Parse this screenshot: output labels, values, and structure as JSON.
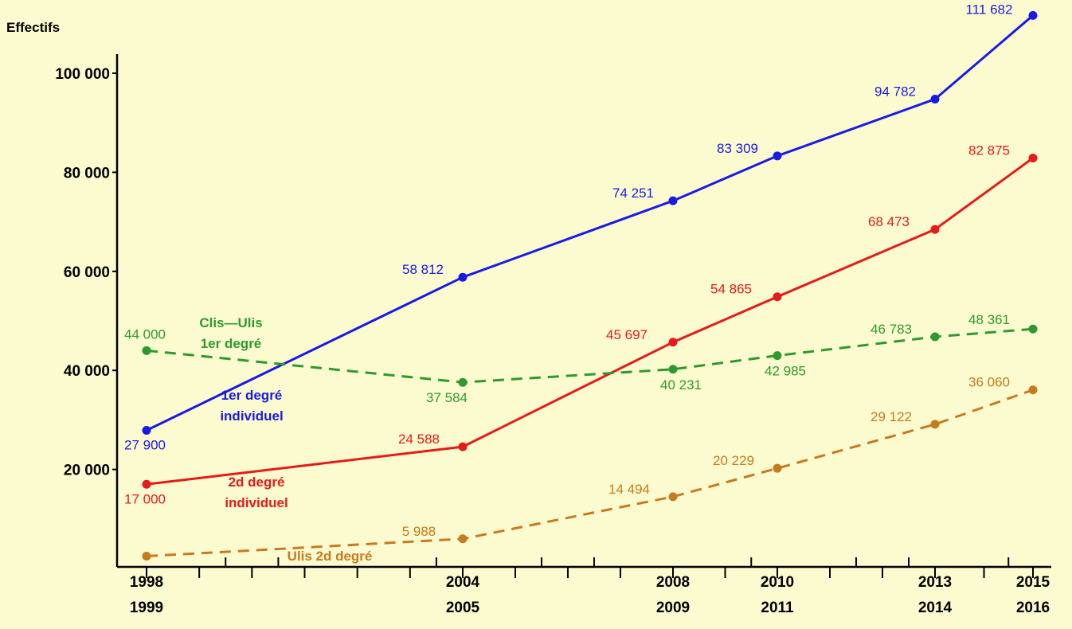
{
  "chart_data": {
    "type": "line",
    "ylabel": "Effectifs",
    "xlabel": "",
    "title": "",
    "ylim": [
      0,
      112000
    ],
    "y_ticks": [
      {
        "value": 20000,
        "label": "20 000"
      },
      {
        "value": 40000,
        "label": "40 000"
      },
      {
        "value": 60000,
        "label": "60 000"
      },
      {
        "value": 80000,
        "label": "80 000"
      },
      {
        "value": 100000,
        "label": "100 000"
      }
    ],
    "x_start_years": [
      1998,
      1999,
      2000,
      2001,
      2002,
      2003,
      2004,
      2005,
      2006,
      2007,
      2008,
      2009,
      2010,
      2011,
      2012,
      2013,
      2014,
      2015
    ],
    "x_ticks": [
      {
        "x": 1998,
        "top": "1998",
        "bottom": "1999"
      },
      {
        "x": 2004,
        "top": "2004",
        "bottom": "2005"
      },
      {
        "x": 2008,
        "top": "2008",
        "bottom": "2009"
      },
      {
        "x": 2010,
        "top": "2010",
        "bottom": "2011"
      },
      {
        "x": 2013,
        "top": "2013",
        "bottom": "2014"
      },
      {
        "x": 2015,
        "top": "2015",
        "bottom": "2016"
      }
    ],
    "series": [
      {
        "name": "1er degré individuel",
        "label_lines": [
          "1er degré",
          "individuel"
        ],
        "color": "#1a1ae6",
        "dashed": false,
        "points": [
          {
            "x": 1998,
            "y": 27900,
            "label": "27 900"
          },
          {
            "x": 2004,
            "y": 58812,
            "label": "58 812"
          },
          {
            "x": 2008,
            "y": 74251,
            "label": "74 251"
          },
          {
            "x": 2010,
            "y": 83309,
            "label": "83 309"
          },
          {
            "x": 2013,
            "y": 94782,
            "label": "94 782"
          },
          {
            "x": 2015,
            "y": 111682,
            "label": "111 682"
          }
        ]
      },
      {
        "name": "2d degré individuel",
        "label_lines": [
          "2d degré",
          "individuel"
        ],
        "color": "#e61a1a",
        "dashed": false,
        "points": [
          {
            "x": 1998,
            "y": 17000,
            "label": "17 000"
          },
          {
            "x": 2004,
            "y": 24588,
            "label": "24 588"
          },
          {
            "x": 2008,
            "y": 45697,
            "label": "45 697"
          },
          {
            "x": 2010,
            "y": 54865,
            "label": "54 865"
          },
          {
            "x": 2013,
            "y": 68473,
            "label": "68 473"
          },
          {
            "x": 2015,
            "y": 82875,
            "label": "82 875"
          }
        ]
      },
      {
        "name": "Clis—Ulis 1er degré",
        "label_lines": [
          "Clis—Ulis",
          "1er degré"
        ],
        "color": "#2e9a2e",
        "dashed": true,
        "points": [
          {
            "x": 1998,
            "y": 44000,
            "label": "44 000"
          },
          {
            "x": 2004,
            "y": 37584,
            "label": "37 584"
          },
          {
            "x": 2008,
            "y": 40231,
            "label": "40 231"
          },
          {
            "x": 2010,
            "y": 42985,
            "label": "42 985"
          },
          {
            "x": 2013,
            "y": 46783,
            "label": "46 783"
          },
          {
            "x": 2015,
            "y": 48361,
            "label": "48 361"
          }
        ]
      },
      {
        "name": "Ulis 2d degré",
        "label_lines": [
          "Ulis 2d degré"
        ],
        "color": "#c87a1e",
        "dashed": true,
        "points": [
          {
            "x": 1998,
            "y": 2500,
            "label": ""
          },
          {
            "x": 2004,
            "y": 5988,
            "label": "5 988"
          },
          {
            "x": 2008,
            "y": 14494,
            "label": "14 494"
          },
          {
            "x": 2010,
            "y": 20229,
            "label": "20 229"
          },
          {
            "x": 2013,
            "y": 29122,
            "label": "29 122"
          },
          {
            "x": 2015,
            "y": 36060,
            "label": "36 060"
          }
        ]
      }
    ],
    "grid": false,
    "legend": "inline"
  }
}
